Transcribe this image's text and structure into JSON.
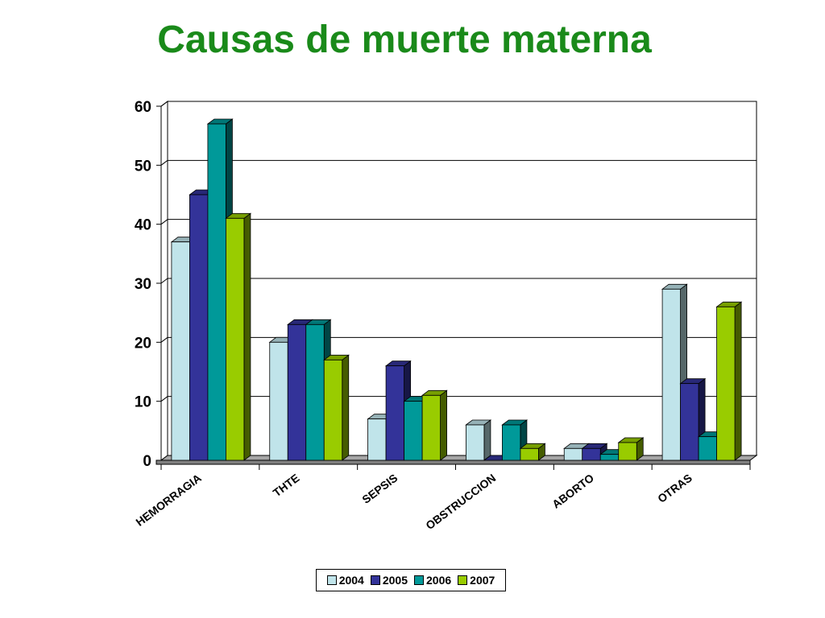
{
  "chart_data": {
    "type": "bar",
    "title": "Causas de muerte materna",
    "categories": [
      "HEMORRAGIA",
      "THTE",
      "SEPSIS",
      "OBSTRUCCION",
      "ABORTO",
      "OTRAS"
    ],
    "series": [
      {
        "name": "2004",
        "color": "#c0e4ea",
        "values": [
          37,
          20,
          7,
          6,
          2,
          29
        ]
      },
      {
        "name": "2005",
        "color": "#333399",
        "values": [
          45,
          23,
          16,
          0,
          2,
          13
        ]
      },
      {
        "name": "2006",
        "color": "#009999",
        "values": [
          57,
          23,
          10,
          6,
          1,
          4
        ]
      },
      {
        "name": "2007",
        "color": "#99cc00",
        "values": [
          41,
          17,
          11,
          2,
          3,
          26
        ]
      }
    ],
    "ylim": [
      0,
      60
    ],
    "yticks": [
      0,
      10,
      20,
      30,
      40,
      50,
      60
    ],
    "grid": true,
    "legend_position": "bottom"
  }
}
